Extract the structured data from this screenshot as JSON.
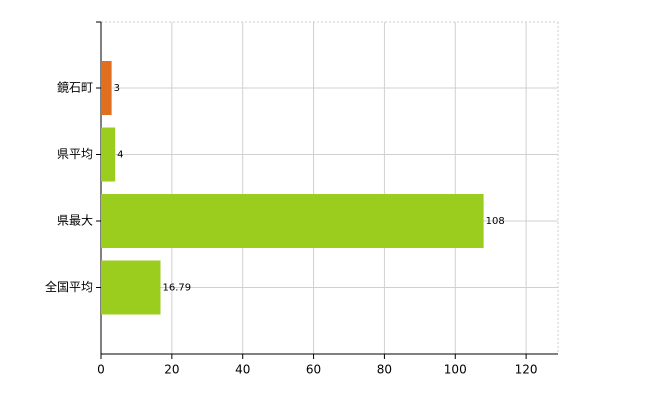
{
  "chart_data": {
    "type": "hbar",
    "categories": [
      "鏡石町",
      "県平均",
      "県最大",
      "全国平均"
    ],
    "values": [
      3,
      4,
      108,
      16.79
    ],
    "colors": [
      "#e07020",
      "#9acd1e",
      "#9acd1e",
      "#9acd1e"
    ],
    "xlim": [
      0,
      129
    ],
    "xticks": [
      0,
      20,
      40,
      60,
      80,
      100,
      120
    ],
    "grid": true
  }
}
